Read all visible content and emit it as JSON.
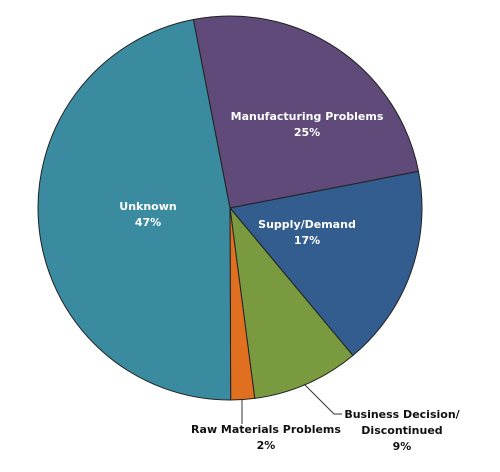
{
  "chart_data": {
    "type": "pie",
    "categories": [
      "Manufacturing Problems",
      "Supply/Demand",
      "Business Decision/ Discontinued",
      "Raw Materials Problems",
      "Unknown"
    ],
    "values": [
      25,
      17,
      9,
      2,
      47
    ],
    "value_labels": [
      "25%",
      "17%",
      "9%",
      "2%",
      "47%"
    ],
    "colors": [
      "#5f4a7a",
      "#335d8f",
      "#7a9a3f",
      "#e07020",
      "#3a8aa0"
    ]
  }
}
